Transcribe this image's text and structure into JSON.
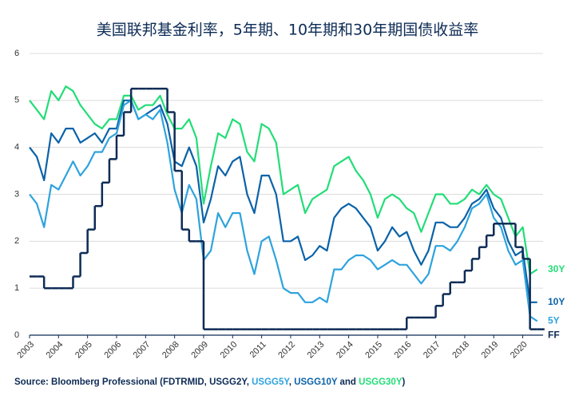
{
  "chart_data": {
    "type": "line",
    "title": "美国联邦基金利率，5年期、10年期和30年期国债收益率",
    "x": [
      2003,
      2003.25,
      2003.5,
      2003.75,
      2004,
      2004.25,
      2004.5,
      2004.75,
      2005,
      2005.25,
      2005.5,
      2005.75,
      2006,
      2006.25,
      2006.5,
      2006.75,
      2007,
      2007.25,
      2007.5,
      2007.75,
      2008,
      2008.25,
      2008.5,
      2008.75,
      2009,
      2009.25,
      2009.5,
      2009.75,
      2010,
      2010.25,
      2010.5,
      2010.75,
      2011,
      2011.25,
      2011.5,
      2011.75,
      2012,
      2012.25,
      2012.5,
      2012.75,
      2013,
      2013.25,
      2013.5,
      2013.75,
      2014,
      2014.25,
      2014.5,
      2014.75,
      2015,
      2015.25,
      2015.5,
      2015.75,
      2016,
      2016.25,
      2016.5,
      2016.75,
      2017,
      2017.25,
      2017.5,
      2017.75,
      2018,
      2018.25,
      2018.5,
      2018.75,
      2019,
      2019.25,
      2019.5,
      2019.75,
      2020,
      2020.25,
      2020.5
    ],
    "series": [
      {
        "name": "30Y",
        "color": "#22dd77",
        "values": [
          5.0,
          4.8,
          4.6,
          5.2,
          5.0,
          5.3,
          5.2,
          4.9,
          4.7,
          4.5,
          4.4,
          4.6,
          4.6,
          5.1,
          5.1,
          4.8,
          4.9,
          4.9,
          5.1,
          4.7,
          4.4,
          4.4,
          4.6,
          4.2,
          2.8,
          3.6,
          4.3,
          4.2,
          4.6,
          4.5,
          3.9,
          3.7,
          4.5,
          4.4,
          4.1,
          3.0,
          3.1,
          3.2,
          2.6,
          2.9,
          3.0,
          3.1,
          3.6,
          3.7,
          3.8,
          3.5,
          3.3,
          3.0,
          2.5,
          2.9,
          3.0,
          2.9,
          2.7,
          2.6,
          2.2,
          2.6,
          3.0,
          3.0,
          2.8,
          2.8,
          2.9,
          3.1,
          3.0,
          3.2,
          3.0,
          2.9,
          2.5,
          2.1,
          2.3,
          1.3,
          1.4
        ]
      },
      {
        "name": "10Y",
        "color": "#0a62a8",
        "values": [
          4.0,
          3.8,
          3.3,
          4.3,
          4.1,
          4.4,
          4.4,
          4.1,
          4.2,
          4.3,
          4.1,
          4.4,
          4.4,
          5.0,
          5.0,
          4.6,
          4.7,
          4.8,
          4.9,
          4.5,
          3.7,
          3.6,
          4.0,
          3.6,
          2.4,
          2.9,
          3.6,
          3.4,
          3.7,
          3.8,
          3.0,
          2.6,
          3.4,
          3.4,
          3.0,
          2.0,
          2.0,
          2.1,
          1.6,
          1.7,
          1.9,
          1.8,
          2.5,
          2.7,
          2.8,
          2.7,
          2.5,
          2.3,
          1.8,
          2.0,
          2.3,
          2.1,
          2.2,
          1.8,
          1.5,
          1.8,
          2.4,
          2.4,
          2.3,
          2.3,
          2.5,
          2.8,
          2.9,
          3.1,
          2.7,
          2.5,
          2.0,
          1.7,
          1.8,
          0.7,
          0.7
        ]
      },
      {
        "name": "5Y",
        "color": "#2ea3dd",
        "values": [
          3.0,
          2.8,
          2.3,
          3.2,
          3.1,
          3.4,
          3.7,
          3.4,
          3.6,
          3.9,
          3.9,
          4.2,
          4.3,
          4.9,
          5.0,
          4.6,
          4.7,
          4.6,
          4.8,
          4.1,
          3.1,
          2.6,
          3.2,
          2.9,
          1.6,
          1.8,
          2.6,
          2.3,
          2.6,
          2.6,
          1.8,
          1.3,
          2.0,
          2.1,
          1.6,
          1.0,
          0.9,
          0.9,
          0.7,
          0.7,
          0.8,
          0.7,
          1.4,
          1.4,
          1.6,
          1.7,
          1.7,
          1.6,
          1.4,
          1.5,
          1.6,
          1.5,
          1.5,
          1.3,
          1.1,
          1.3,
          1.9,
          1.9,
          1.8,
          2.0,
          2.3,
          2.7,
          2.8,
          3.0,
          2.5,
          2.3,
          1.8,
          1.5,
          1.6,
          0.4,
          0.3
        ]
      },
      {
        "name": "FF",
        "color": "#0d2b55",
        "step": true,
        "values": [
          1.25,
          1.25,
          1,
          1,
          1,
          1,
          1.25,
          1.75,
          2.25,
          2.75,
          3.25,
          3.75,
          4.25,
          4.75,
          5.25,
          5.25,
          5.25,
          5.25,
          5.25,
          4.75,
          3.5,
          2.25,
          2,
          2,
          0.125,
          0.125,
          0.125,
          0.125,
          0.125,
          0.125,
          0.125,
          0.125,
          0.125,
          0.125,
          0.125,
          0.125,
          0.125,
          0.125,
          0.125,
          0.125,
          0.125,
          0.125,
          0.125,
          0.125,
          0.125,
          0.125,
          0.125,
          0.125,
          0.125,
          0.125,
          0.125,
          0.125,
          0.375,
          0.375,
          0.375,
          0.375,
          0.625,
          0.875,
          1.125,
          1.125,
          1.375,
          1.625,
          1.875,
          2.125,
          2.375,
          2.375,
          2.375,
          1.875,
          1.625,
          0.125,
          0.125
        ]
      }
    ],
    "xlim": [
      2003,
      2020.7
    ],
    "xticks": [
      2003,
      2004,
      2005,
      2006,
      2007,
      2008,
      2009,
      2010,
      2011,
      2012,
      2013,
      2014,
      2015,
      2016,
      2017,
      2018,
      2019,
      2020
    ],
    "ylim": [
      0,
      6
    ],
    "yticks": [
      0,
      1,
      2,
      3,
      4,
      5,
      6
    ],
    "grid": true,
    "source": [
      {
        "text": "Source: Bloomberg Professional (FDTRMID, USGG2Y, ",
        "color": "#0d2b55"
      },
      {
        "text": "USGG5Y",
        "color": "#2ea3dd"
      },
      {
        "text": ", ",
        "color": "#0d2b55"
      },
      {
        "text": "USGG10Y",
        "color": "#0a62a8"
      },
      {
        "text": " and ",
        "color": "#0d2b55"
      },
      {
        "text": "USGG30Y",
        "color": "#22dd77"
      },
      {
        "text": ")",
        "color": "#0d2b55"
      }
    ]
  }
}
